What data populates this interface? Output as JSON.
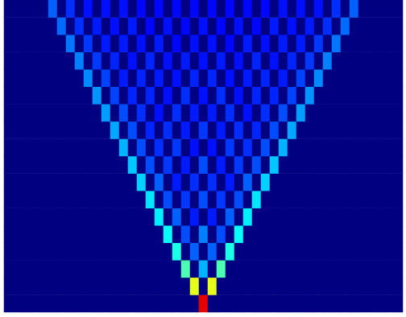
{
  "chart_data": {
    "type": "heatmap",
    "x": [
      -22,
      -21,
      -20,
      -19,
      -18,
      -17,
      -16,
      -15,
      -14,
      -13,
      -12,
      -11,
      -10,
      -9,
      -8,
      -7,
      -6,
      -5,
      -4,
      -3,
      -2,
      -1,
      0,
      1,
      2,
      3,
      4,
      5,
      6,
      7,
      8,
      9,
      10,
      11,
      12,
      13,
      14,
      15,
      16,
      17,
      18,
      19,
      20,
      21,
      22
    ],
    "y": [
      0,
      1,
      2,
      3,
      4,
      5,
      6,
      7,
      8,
      9,
      10,
      11,
      12,
      13,
      14,
      15,
      16,
      17
    ],
    "z": [
      [
        0,
        0,
        0,
        0,
        0,
        0,
        0,
        0,
        0,
        0,
        0,
        0,
        0,
        0,
        0,
        0,
        0,
        0,
        0,
        0,
        0,
        0,
        0.9,
        0,
        0,
        0,
        0,
        0,
        0,
        0,
        0,
        0,
        0,
        0,
        0,
        0,
        0,
        0,
        0,
        0,
        0,
        0,
        0,
        0,
        0
      ],
      [
        0,
        0,
        0,
        0,
        0,
        0,
        0,
        0,
        0,
        0,
        0,
        0,
        0,
        0,
        0,
        0,
        0,
        0,
        0,
        0,
        0,
        0.6,
        0,
        0.6,
        0,
        0,
        0,
        0,
        0,
        0,
        0,
        0,
        0,
        0,
        0,
        0,
        0,
        0,
        0,
        0,
        0,
        0,
        0,
        0,
        0
      ],
      [
        0,
        0,
        0,
        0,
        0,
        0,
        0,
        0,
        0,
        0,
        0,
        0,
        0,
        0,
        0,
        0,
        0,
        0,
        0,
        0,
        0.45,
        0,
        0.3,
        0,
        0.45,
        0,
        0,
        0,
        0,
        0,
        0,
        0,
        0,
        0,
        0,
        0,
        0,
        0,
        0,
        0,
        0,
        0,
        0,
        0,
        0
      ],
      [
        0,
        0,
        0,
        0,
        0,
        0,
        0,
        0,
        0,
        0,
        0,
        0,
        0,
        0,
        0,
        0,
        0,
        0,
        0,
        0.4,
        0,
        0.22,
        0,
        0.22,
        0,
        0.4,
        0,
        0,
        0,
        0,
        0,
        0,
        0,
        0,
        0,
        0,
        0,
        0,
        0,
        0,
        0,
        0,
        0,
        0,
        0
      ],
      [
        0,
        0,
        0,
        0,
        0,
        0,
        0,
        0,
        0,
        0,
        0,
        0,
        0,
        0,
        0,
        0,
        0,
        0,
        0.38,
        0,
        0.2,
        0,
        0.25,
        0,
        0.2,
        0,
        0.38,
        0,
        0,
        0,
        0,
        0,
        0,
        0,
        0,
        0,
        0,
        0,
        0,
        0,
        0,
        0,
        0,
        0,
        0
      ],
      [
        0,
        0,
        0,
        0,
        0,
        0,
        0,
        0,
        0,
        0,
        0,
        0,
        0,
        0,
        0,
        0,
        0,
        0.36,
        0,
        0.22,
        0,
        0.15,
        0,
        0.15,
        0,
        0.22,
        0,
        0.36,
        0,
        0,
        0,
        0,
        0,
        0,
        0,
        0,
        0,
        0,
        0,
        0,
        0,
        0,
        0,
        0,
        0
      ],
      [
        0,
        0,
        0,
        0,
        0,
        0,
        0,
        0,
        0,
        0,
        0,
        0,
        0,
        0,
        0,
        0,
        0.35,
        0,
        0.2,
        0,
        0.18,
        0,
        0.2,
        0,
        0.18,
        0,
        0.2,
        0,
        0.35,
        0,
        0,
        0,
        0,
        0,
        0,
        0,
        0,
        0,
        0,
        0,
        0,
        0,
        0,
        0,
        0
      ],
      [
        0,
        0,
        0,
        0,
        0,
        0,
        0,
        0,
        0,
        0,
        0,
        0,
        0,
        0,
        0,
        0.33,
        0,
        0.22,
        0,
        0.15,
        0,
        0.17,
        0,
        0.17,
        0,
        0.15,
        0,
        0.22,
        0,
        0.33,
        0,
        0,
        0,
        0,
        0,
        0,
        0,
        0,
        0,
        0,
        0,
        0,
        0,
        0,
        0
      ],
      [
        0,
        0,
        0,
        0,
        0,
        0,
        0,
        0,
        0,
        0,
        0,
        0,
        0,
        0,
        0.32,
        0,
        0.2,
        0,
        0.18,
        0,
        0.15,
        0,
        0.2,
        0,
        0.15,
        0,
        0.18,
        0,
        0.2,
        0,
        0.32,
        0,
        0,
        0,
        0,
        0,
        0,
        0,
        0,
        0,
        0,
        0,
        0,
        0,
        0
      ],
      [
        0,
        0,
        0,
        0,
        0,
        0,
        0,
        0,
        0,
        0,
        0,
        0,
        0,
        0.3,
        0,
        0.2,
        0,
        0.17,
        0,
        0.18,
        0,
        0.14,
        0,
        0.14,
        0,
        0.18,
        0,
        0.17,
        0,
        0.2,
        0,
        0.3,
        0,
        0,
        0,
        0,
        0,
        0,
        0,
        0,
        0,
        0,
        0,
        0,
        0
      ],
      [
        0,
        0,
        0,
        0,
        0,
        0,
        0,
        0,
        0,
        0,
        0,
        0,
        0.29,
        0,
        0.2,
        0,
        0.16,
        0,
        0.17,
        0,
        0.15,
        0,
        0.18,
        0,
        0.15,
        0,
        0.17,
        0,
        0.16,
        0,
        0.2,
        0,
        0.29,
        0,
        0,
        0,
        0,
        0,
        0,
        0,
        0,
        0,
        0,
        0,
        0
      ],
      [
        0,
        0,
        0,
        0,
        0,
        0,
        0,
        0,
        0,
        0,
        0,
        0.28,
        0,
        0.2,
        0,
        0.17,
        0,
        0.14,
        0,
        0.17,
        0,
        0.15,
        0,
        0.15,
        0,
        0.17,
        0,
        0.14,
        0,
        0.17,
        0,
        0.2,
        0,
        0.28,
        0,
        0,
        0,
        0,
        0,
        0,
        0,
        0,
        0,
        0,
        0
      ],
      [
        0,
        0,
        0,
        0,
        0,
        0,
        0,
        0,
        0,
        0,
        0.27,
        0,
        0.19,
        0,
        0.16,
        0,
        0.16,
        0,
        0.14,
        0,
        0.17,
        0,
        0.14,
        0,
        0.17,
        0,
        0.14,
        0,
        0.16,
        0,
        0.16,
        0,
        0.19,
        0,
        0.27,
        0,
        0,
        0,
        0,
        0,
        0,
        0,
        0,
        0,
        0
      ],
      [
        0,
        0,
        0,
        0,
        0,
        0,
        0,
        0,
        0,
        0.26,
        0,
        0.19,
        0,
        0.15,
        0,
        0.16,
        0,
        0.15,
        0,
        0.14,
        0,
        0.16,
        0,
        0.16,
        0,
        0.14,
        0,
        0.15,
        0,
        0.16,
        0,
        0.15,
        0,
        0.19,
        0,
        0.26,
        0,
        0,
        0,
        0,
        0,
        0,
        0,
        0,
        0
      ],
      [
        0,
        0,
        0,
        0,
        0,
        0,
        0,
        0,
        0.25,
        0,
        0.18,
        0,
        0.16,
        0,
        0.14,
        0,
        0.16,
        0,
        0.14,
        0,
        0.15,
        0,
        0.14,
        0,
        0.15,
        0,
        0.14,
        0,
        0.16,
        0,
        0.14,
        0,
        0.16,
        0,
        0.18,
        0,
        0.25,
        0,
        0,
        0,
        0,
        0,
        0,
        0,
        0
      ],
      [
        0,
        0,
        0,
        0,
        0,
        0,
        0,
        0.24,
        0,
        0.18,
        0,
        0.15,
        0,
        0.15,
        0,
        0.14,
        0,
        0.15,
        0,
        0.13,
        0,
        0.14,
        0,
        0.14,
        0,
        0.13,
        0,
        0.15,
        0,
        0.14,
        0,
        0.15,
        0,
        0.15,
        0,
        0.18,
        0,
        0.24,
        0,
        0,
        0,
        0,
        0,
        0,
        0
      ],
      [
        0,
        0,
        0,
        0,
        0,
        0,
        0.23,
        0,
        0.17,
        0,
        0.15,
        0,
        0.14,
        0,
        0.15,
        0,
        0.13,
        0,
        0.14,
        0,
        0.13,
        0,
        0.14,
        0,
        0.13,
        0,
        0.14,
        0,
        0.13,
        0,
        0.15,
        0,
        0.14,
        0,
        0.15,
        0,
        0.17,
        0,
        0.23,
        0,
        0,
        0,
        0,
        0,
        0
      ],
      [
        0,
        0,
        0,
        0,
        0,
        0.22,
        0,
        0.17,
        0,
        0.14,
        0,
        0.14,
        0,
        0.14,
        0,
        0.13,
        0,
        0.13,
        0,
        0.13,
        0,
        0.13,
        0,
        0.13,
        0,
        0.13,
        0,
        0.13,
        0,
        0.13,
        0,
        0.14,
        0,
        0.14,
        0,
        0.14,
        0,
        0.17,
        0,
        0.22,
        0,
        0,
        0,
        0,
        0
      ]
    ],
    "zlim": [
      0,
      1
    ],
    "tick_labels": false,
    "grid": false
  }
}
